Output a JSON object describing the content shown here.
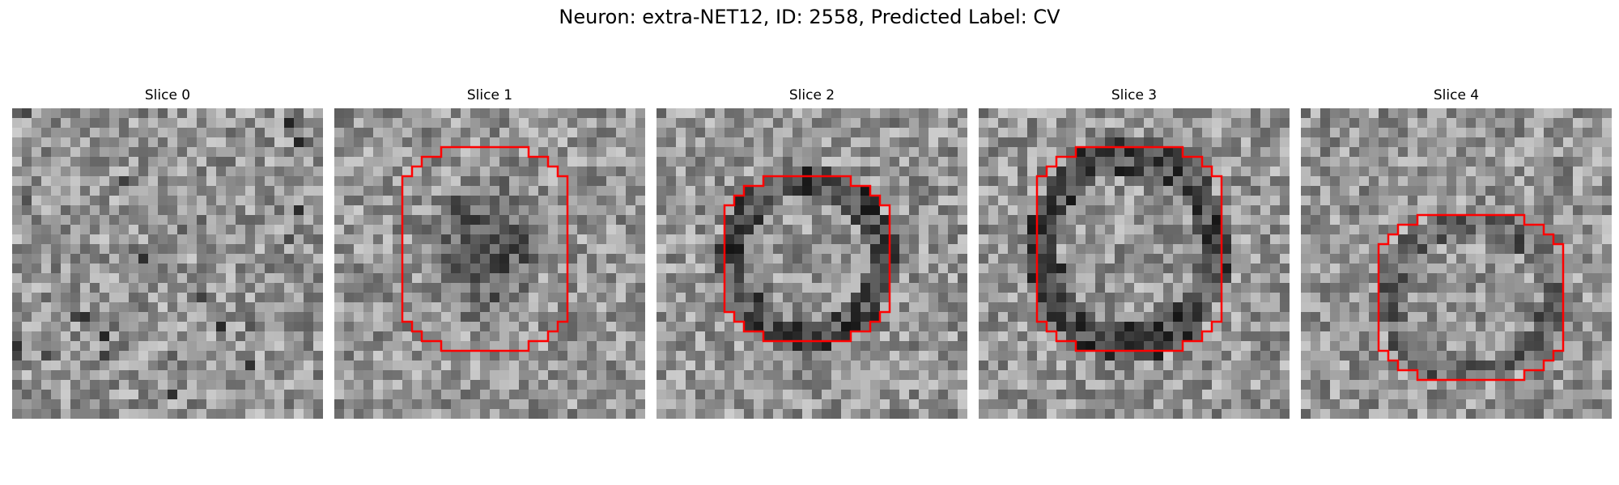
{
  "figure": {
    "title": "Neuron: extra-NET12, ID: 2558, Predicted Label: CV"
  },
  "panels": [
    {
      "title": "Slice 0",
      "contour": false,
      "contour_color": "#ff0000",
      "texture": "noise",
      "seed": 11
    },
    {
      "title": "Slice 1",
      "contour": true,
      "contour_color": "#ff0000",
      "texture": "dark-center",
      "seed": 23
    },
    {
      "title": "Slice 2",
      "contour": true,
      "contour_color": "#ff0000",
      "texture": "dark-ring",
      "seed": 37
    },
    {
      "title": "Slice 3",
      "contour": true,
      "contour_color": "#ff0000",
      "texture": "dark-ring",
      "seed": 41
    },
    {
      "title": "Slice 4",
      "contour": true,
      "contour_color": "#ff0000",
      "texture": "faint-ring",
      "seed": 53
    }
  ]
}
